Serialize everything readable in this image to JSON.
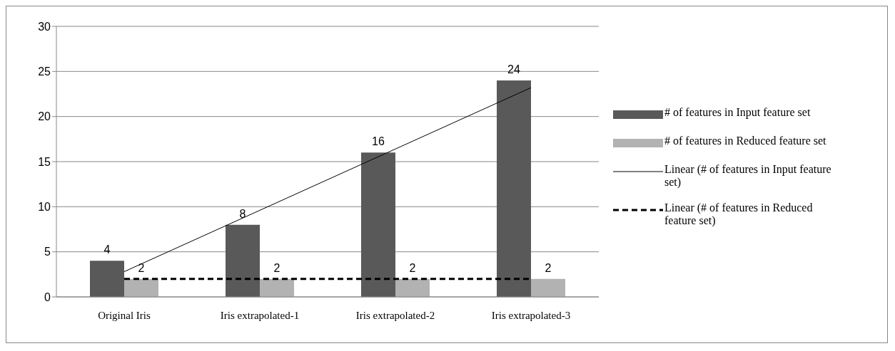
{
  "chart_data": {
    "type": "bar",
    "categories": [
      "Original Iris",
      "Iris extrapolated-1",
      "Iris extrapolated-2",
      "Iris extrapolated-3"
    ],
    "series": [
      {
        "name": "# of features in Input feature set",
        "color": "#595959",
        "values": [
          4,
          8,
          16,
          24
        ],
        "value_labels": [
          "4",
          "8",
          "16",
          "24"
        ]
      },
      {
        "name": "# of features in Reduced feature set",
        "color": "#b2b2b2",
        "values": [
          2,
          2,
          2,
          2
        ],
        "value_labels": [
          "2",
          "2",
          "2",
          "2"
        ]
      },
      {
        "name": "Linear (# of features in Input feature set)",
        "type": "line",
        "color": "#000000",
        "line_style": "solid",
        "values": [
          2.8,
          9.6,
          16.4,
          23.2
        ]
      },
      {
        "name": "Linear (# of features in Reduced feature set)",
        "type": "line",
        "color": "#000000",
        "line_style": "dashed",
        "values": [
          2,
          2,
          2,
          2
        ]
      }
    ],
    "ylim": [
      0,
      30
    ],
    "yticks": [
      0,
      5,
      10,
      15,
      20,
      25,
      30
    ],
    "grid": "y",
    "legend": "right",
    "marker": "none"
  }
}
